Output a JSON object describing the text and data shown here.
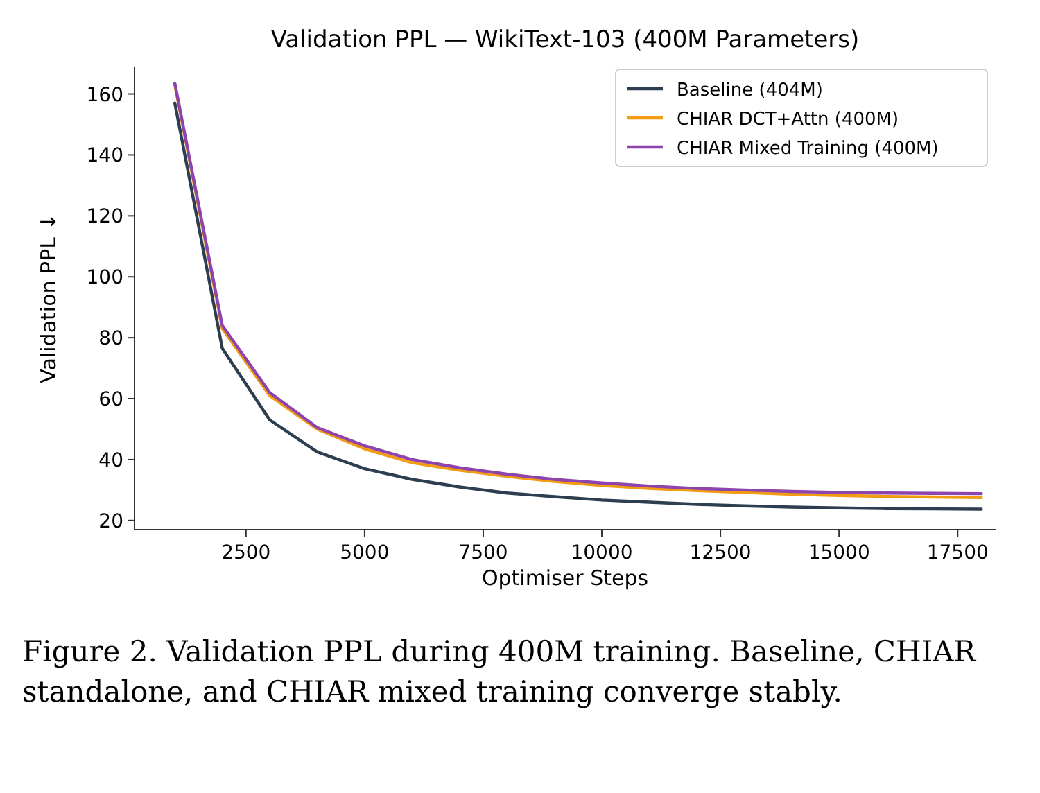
{
  "chart_data": {
    "type": "line",
    "title": "Validation PPL — WikiText-103 (400M Parameters)",
    "xlabel": "Optimiser Steps",
    "ylabel": "Validation PPL ↓",
    "x": [
      1000,
      2000,
      3000,
      4000,
      5000,
      6000,
      7000,
      8000,
      9000,
      10000,
      11000,
      12000,
      13000,
      14000,
      15000,
      16000,
      17000,
      18000
    ],
    "series": [
      {
        "name": "Baseline (404M)",
        "color": "#2c3e50",
        "values": [
          157,
          76.5,
          53,
          42.5,
          37,
          33.5,
          31,
          29,
          27.8,
          26.7,
          26,
          25.3,
          24.8,
          24.4,
          24.1,
          23.9,
          23.8,
          23.7
        ]
      },
      {
        "name": "CHIAR DCT+Attn (400M)",
        "color": "#f39c12",
        "values": [
          163,
          83,
          61,
          50,
          43.5,
          39,
          36.5,
          34.5,
          32.8,
          31.5,
          30.5,
          29.8,
          29.2,
          28.6,
          28.2,
          27.9,
          27.7,
          27.5
        ]
      },
      {
        "name": "CHIAR Mixed Training (400M)",
        "color": "#8e44ad",
        "values": [
          163.5,
          84,
          62,
          50.5,
          44.5,
          40,
          37.3,
          35.2,
          33.5,
          32.3,
          31.3,
          30.5,
          30,
          29.5,
          29.2,
          29,
          28.9,
          28.8
        ]
      }
    ],
    "xlim": [
      150,
      18300
    ],
    "ylim": [
      17,
      169
    ],
    "xticks": [
      2500,
      5000,
      7500,
      10000,
      12500,
      15000,
      17500
    ],
    "yticks": [
      20,
      40,
      60,
      80,
      100,
      120,
      140,
      160
    ],
    "grid": false,
    "legend": "top right",
    "annotations": [
      "Figure 2. Validation PPL during 400M training. Baseline, CHIAR standalone, and CHIAR mixed training converge stably."
    ]
  }
}
